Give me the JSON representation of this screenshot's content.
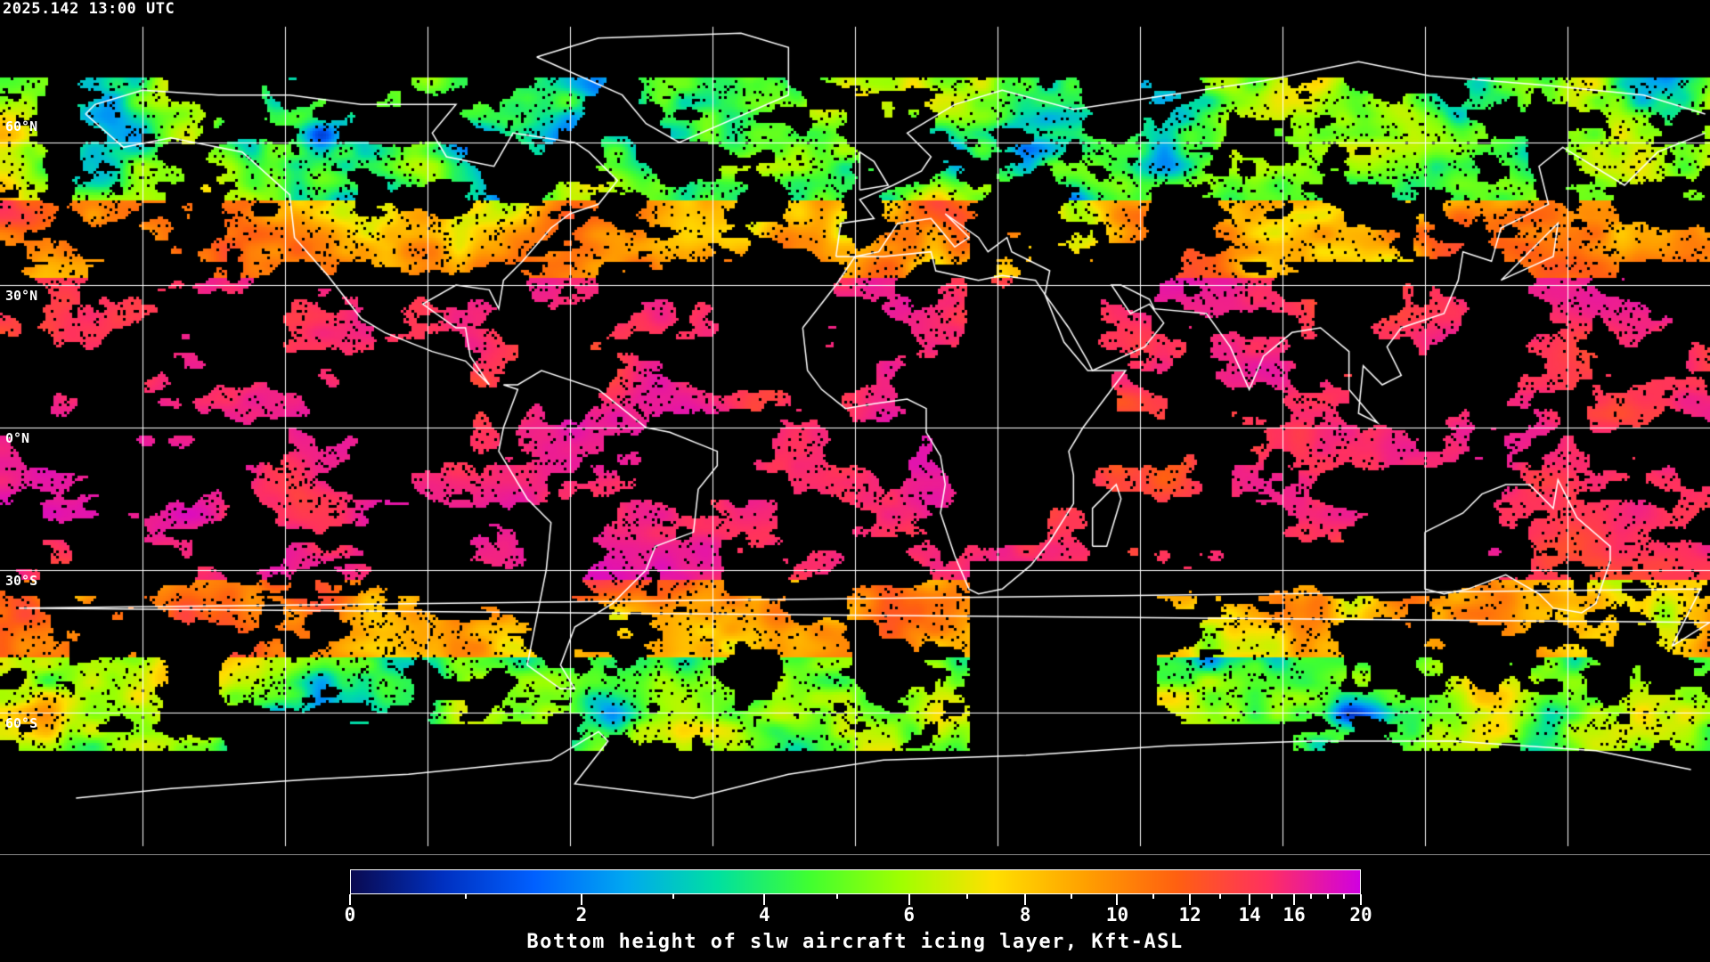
{
  "header": {
    "timestamp": "2025.142 13:00 UTC"
  },
  "map": {
    "projection": "equirectangular",
    "lat_labels": [
      "60°N",
      "30°N",
      "0°N",
      "30°S",
      "60°S"
    ],
    "gridlines": true,
    "coastline_color": "#ffffff",
    "background_color": "#000000"
  },
  "colorbar": {
    "title": "Bottom height of slw aircraft icing layer, Kft-ASL",
    "min": 0,
    "max": 20,
    "major_ticks": [
      0,
      2,
      4,
      6,
      8,
      10,
      12,
      14,
      16,
      20
    ],
    "tick_labels": [
      "0",
      "2",
      "4",
      "6",
      "8",
      "10",
      "12",
      "14",
      "16",
      "20"
    ],
    "minor_ticks": [
      1,
      3,
      5,
      7,
      9,
      11,
      13,
      15,
      17,
      18,
      19
    ],
    "colors": [
      "#0a0a50",
      "#0030c0",
      "#0060ff",
      "#00a8f0",
      "#00e0a0",
      "#40ff30",
      "#a0ff00",
      "#ffe000",
      "#ffa000",
      "#ff6010",
      "#ff3060",
      "#d000e0"
    ]
  }
}
